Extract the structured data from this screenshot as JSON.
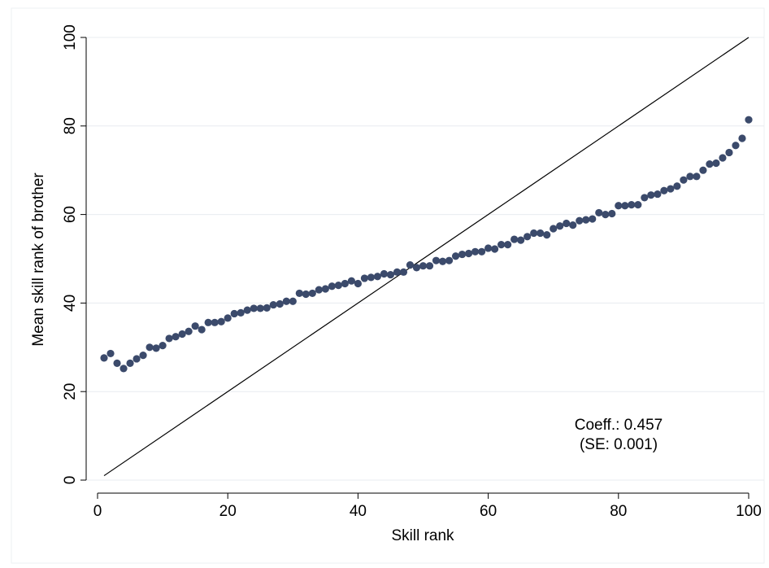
{
  "chart_data": {
    "type": "scatter",
    "title": "",
    "xlabel": "Skill rank",
    "ylabel": "Mean skill rank of brother",
    "xlim": [
      0,
      100
    ],
    "ylim": [
      0,
      100
    ],
    "x_ticks": [
      "0",
      "20",
      "40",
      "60",
      "80",
      "100"
    ],
    "y_ticks": [
      "0",
      "20",
      "40",
      "60",
      "80",
      "100"
    ],
    "grid": "horizontal",
    "legend": "none",
    "point_color": "#3b4a6b",
    "annotation": {
      "line1": "Coeff.: 0.457",
      "line2": "(SE: 0.001)"
    },
    "reference_line": {
      "type": "45-degree",
      "x": [
        1,
        100
      ],
      "y": [
        1,
        100
      ]
    },
    "series": [
      {
        "x": [
          1,
          2,
          3,
          4,
          5,
          6,
          7,
          8,
          9,
          10,
          11,
          12,
          13,
          14,
          15,
          16,
          17,
          18,
          19,
          20,
          21,
          22,
          23,
          24,
          25,
          26,
          27,
          28,
          29,
          30,
          31,
          32,
          33,
          34,
          35,
          36,
          37,
          38,
          39,
          40,
          41,
          42,
          43,
          44,
          45,
          46,
          47,
          48,
          49,
          50,
          51,
          52,
          53,
          54,
          55,
          56,
          57,
          58,
          59,
          60,
          61,
          62,
          63,
          64,
          65,
          66,
          67,
          68,
          69,
          70,
          71,
          72,
          73,
          74,
          75,
          76,
          77,
          78,
          79,
          80,
          81,
          82,
          83,
          84,
          85,
          86,
          87,
          88,
          89,
          90,
          91,
          92,
          93,
          94,
          95,
          96,
          97,
          98,
          99,
          100
        ],
        "y": [
          27.6,
          28.6,
          26.4,
          25.2,
          26.4,
          27.4,
          28.2,
          30,
          29.8,
          30.4,
          32,
          32.4,
          33,
          33.6,
          34.8,
          34,
          35.6,
          35.6,
          35.8,
          36.6,
          37.6,
          37.8,
          38.4,
          38.8,
          38.8,
          38.9,
          39.6,
          39.8,
          40.4,
          40.4,
          42.2,
          42,
          42.2,
          43,
          43.2,
          43.8,
          44,
          44.4,
          45,
          44.4,
          45.6,
          45.8,
          46,
          46.6,
          46.4,
          47,
          47,
          48.6,
          48,
          48.4,
          48.4,
          49.6,
          49.4,
          49.6,
          50.6,
          51,
          51.2,
          51.6,
          51.6,
          52.4,
          52.2,
          53.2,
          53.2,
          54.4,
          54.2,
          55,
          55.8,
          55.8,
          55.4,
          56.8,
          57.4,
          58,
          57.6,
          58.6,
          58.8,
          59,
          60.4,
          60,
          60.2,
          62,
          62,
          62.2,
          62.2,
          63.8,
          64.4,
          64.6,
          65.4,
          65.8,
          66.4,
          67.8,
          68.6,
          68.6,
          70,
          71.4,
          71.6,
          72.8,
          74,
          75.6,
          77.2,
          81.4
        ]
      }
    ]
  }
}
